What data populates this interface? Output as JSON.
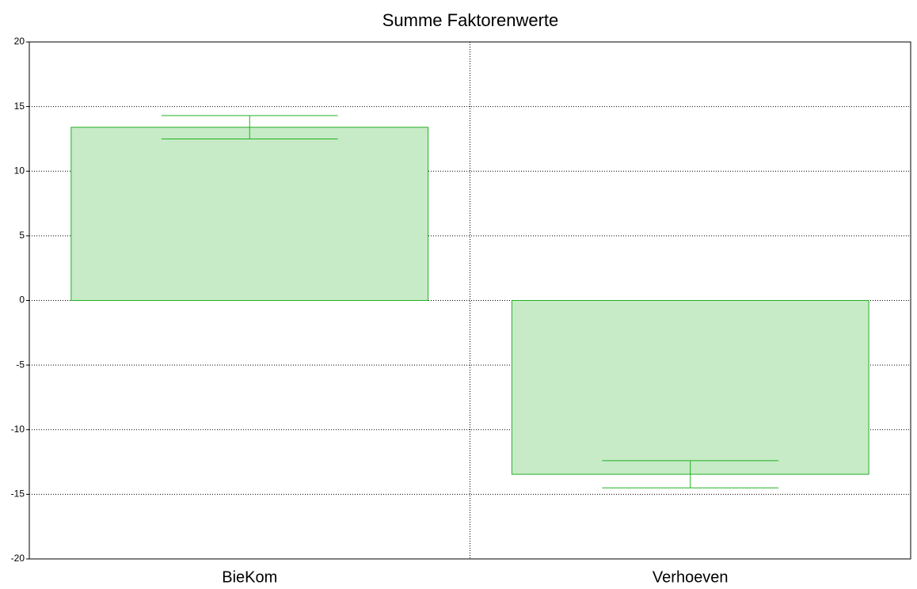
{
  "chart_data": {
    "type": "bar",
    "title": "Summe Faktorenwerte",
    "categories": [
      "BieKom",
      "Verhoeven"
    ],
    "values": [
      13.4,
      -13.45
    ],
    "errors": [
      0.9,
      1.05
    ],
    "color": "#c6ebc6",
    "edge_color": "#22b022",
    "ylim": [
      -20,
      20
    ],
    "yticks": [
      -20,
      -15,
      -10,
      -5,
      0,
      5,
      10,
      15,
      20
    ],
    "grid": true
  }
}
